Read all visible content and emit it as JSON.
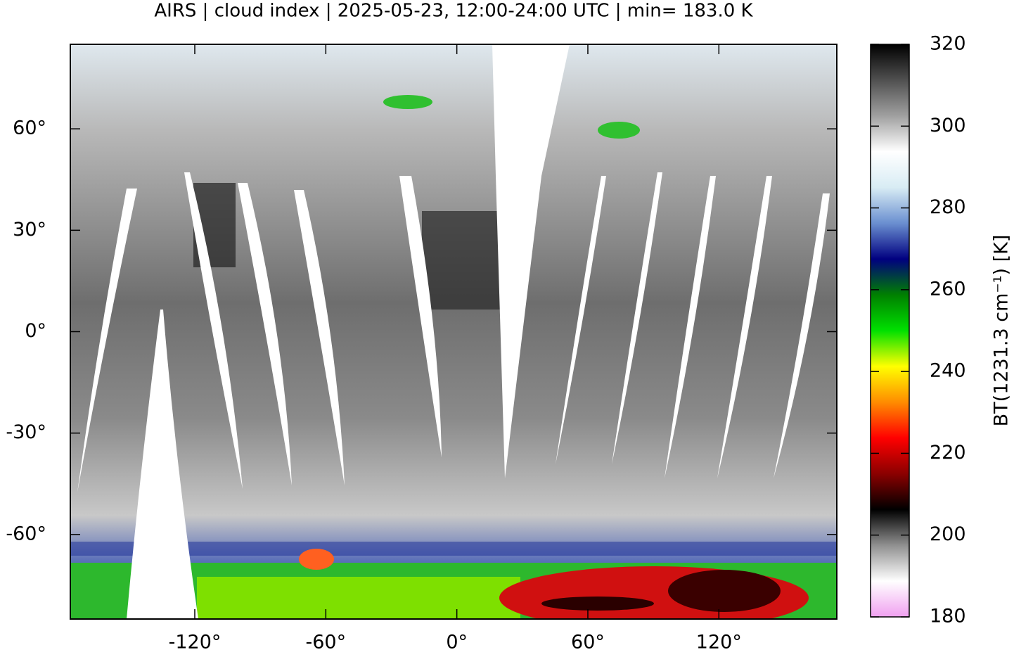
{
  "chart_data": {
    "type": "map",
    "title": "AIRS | cloud index | 2025-05-23, 12:00-24:00 UTC | min= 183.0 K",
    "xlim": [
      -177,
      174
    ],
    "ylim": [
      -85,
      85
    ],
    "xticks": [
      {
        "value": -120,
        "label": "-120°"
      },
      {
        "value": -60,
        "label": "-60°"
      },
      {
        "value": 0,
        "label": "0°"
      },
      {
        "value": 60,
        "label": "60°"
      },
      {
        "value": 120,
        "label": "120°"
      }
    ],
    "yticks": [
      {
        "value": -60,
        "label": "-60°"
      },
      {
        "value": -30,
        "label": "-30°"
      },
      {
        "value": 0,
        "label": "0°"
      },
      {
        "value": 30,
        "label": "30°"
      },
      {
        "value": 60,
        "label": "60°"
      }
    ],
    "colorbar": {
      "label": "BT(1231.3 cm⁻¹) [K]",
      "lim": [
        180,
        320
      ],
      "ticks": [
        180,
        200,
        220,
        240,
        260,
        280,
        300,
        320
      ],
      "colormap": [
        "#f0a0f0",
        "#ffffff",
        "#909090",
        "#000000",
        "#8b0000",
        "#ff0000",
        "#ff8c00",
        "#ffff00",
        "#00e000",
        "#008000",
        "#000080",
        "#6a8fd0",
        "#d8ecf4",
        "#ffffff",
        "#a0a0a0",
        "#505050",
        "#000000"
      ]
    }
  }
}
